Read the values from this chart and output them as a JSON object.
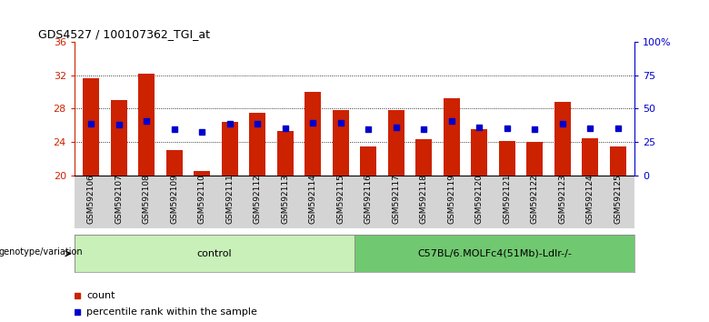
{
  "title": "GDS4527 / 100107362_TGI_at",
  "samples": [
    "GSM592106",
    "GSM592107",
    "GSM592108",
    "GSM592109",
    "GSM592110",
    "GSM592111",
    "GSM592112",
    "GSM592113",
    "GSM592114",
    "GSM592115",
    "GSM592116",
    "GSM592117",
    "GSM592118",
    "GSM592119",
    "GSM592120",
    "GSM592121",
    "GSM592122",
    "GSM592123",
    "GSM592124",
    "GSM592125"
  ],
  "red_bar_tops": [
    31.7,
    29.0,
    32.2,
    23.0,
    20.5,
    26.4,
    27.5,
    25.3,
    30.0,
    27.8,
    23.5,
    27.8,
    24.3,
    29.3,
    25.5,
    24.1,
    24.0,
    28.8,
    24.5,
    23.5
  ],
  "blue_y": [
    26.2,
    26.1,
    26.5,
    25.6,
    25.2,
    26.2,
    26.2,
    25.7,
    26.3,
    26.3,
    25.5,
    25.8,
    25.5,
    26.5,
    25.8,
    25.7,
    25.6,
    26.2,
    25.7,
    25.7
  ],
  "y_min": 20,
  "y_max": 36,
  "y_ticks_left": [
    20,
    24,
    28,
    32,
    36
  ],
  "y_ticks_right": [
    0,
    25,
    50,
    75,
    100
  ],
  "control_label": "control",
  "treatment_label": "C57BL/6.MOLFc4(51Mb)-Ldlr-/-",
  "group_label": "genotype/variation",
  "control_color": "#c8f0b8",
  "treatment_color": "#70c870",
  "bar_color": "#cc2200",
  "blue_color": "#0000cc",
  "bg_color": "#ffffff",
  "plot_bg": "#ffffff",
  "legend_count_label": "count",
  "legend_pct_label": "percentile rank within the sample",
  "n_control": 10,
  "n_total": 20,
  "xtick_bg": "#d4d4d4",
  "group_row_bg": "#d4d4d4"
}
